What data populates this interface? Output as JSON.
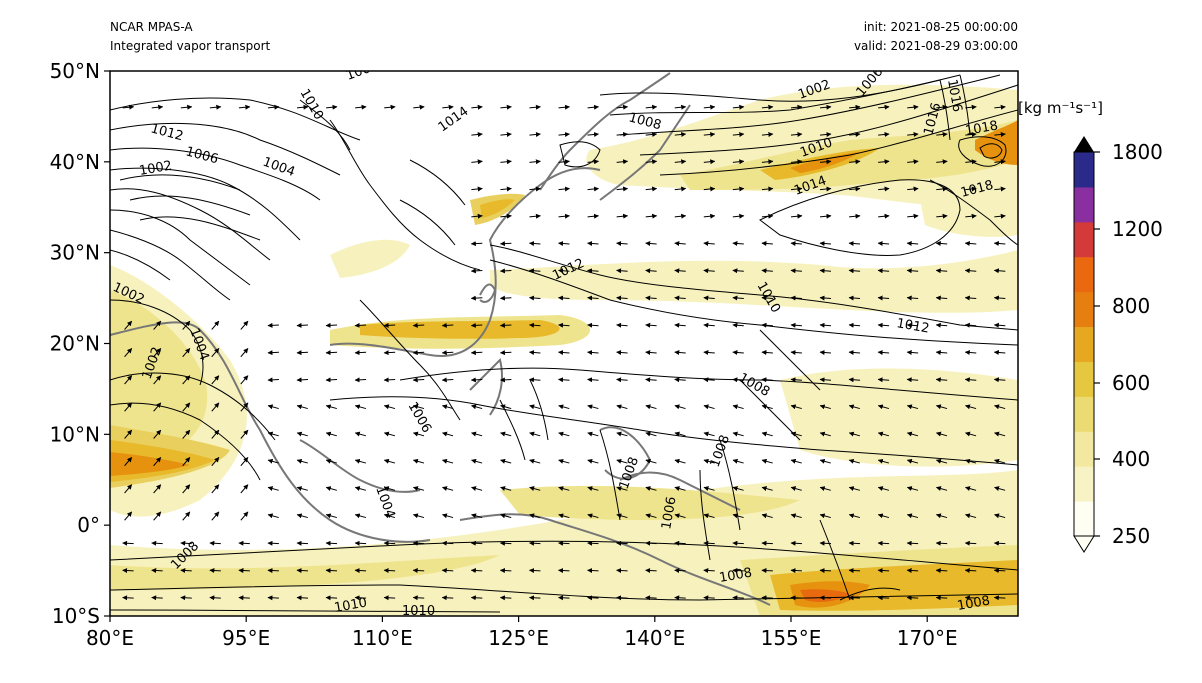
{
  "header": {
    "model": "NCAR MPAS-A",
    "field": "Integrated vapor transport",
    "init": "init: 2021-08-25 00:00:00",
    "valid": "valid: 2021-08-29 03:00:00"
  },
  "map": {
    "lon_range": [
      80,
      180
    ],
    "lat_range": [
      -10,
      50
    ],
    "lon_ticks": [
      "80°E",
      "95°E",
      "110°E",
      "125°E",
      "140°E",
      "155°E",
      "170°E"
    ],
    "lat_ticks": [
      "10°S",
      "0°",
      "10°N",
      "20°N",
      "30°N",
      "40°N",
      "50°N"
    ],
    "contour_labels": [
      "1008",
      "1010",
      "1014",
      "1012",
      "1006",
      "1004",
      "1002",
      "1002",
      "1008",
      "1006",
      "1016",
      "1016",
      "1018",
      "1010",
      "1014",
      "1018",
      "1012",
      "1002",
      "1004",
      "1002",
      "1010",
      "1012",
      "1008",
      "1006",
      "1008",
      "1008",
      "1004",
      "1008",
      "1006",
      "1008",
      "1010",
      "1010",
      "1008"
    ],
    "ivt_colors": [
      "#fffbe6",
      "#f7f2bd",
      "#efe48e",
      "#e9d05e",
      "#e8b92a",
      "#e6920e",
      "#e86a0e",
      "#d43a3a",
      "#8a2fa0",
      "#2a2a8a"
    ]
  },
  "colorbar": {
    "unit": "[kg m⁻¹s⁻¹]",
    "ticks": [
      "250",
      "400",
      "600",
      "800",
      "1200",
      "1800"
    ],
    "colors": [
      "#fffef2",
      "#f8f3c4",
      "#f2e8a0",
      "#ecdb72",
      "#e6c840",
      "#e6a820",
      "#e67f10",
      "#ea6810",
      "#d43a3a",
      "#8a2fa0",
      "#2a2a8a"
    ]
  }
}
